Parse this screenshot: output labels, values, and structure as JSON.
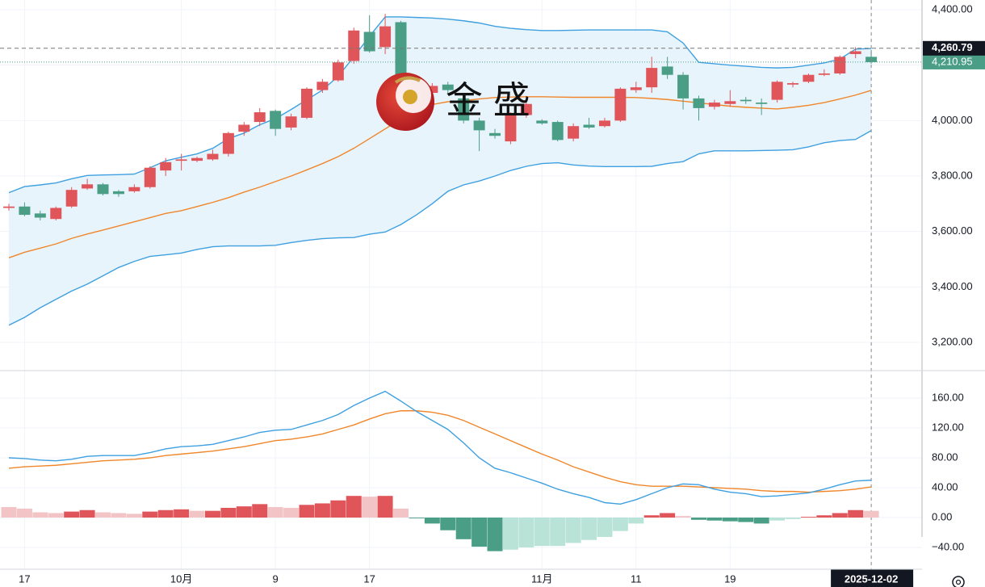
{
  "chart_data": {
    "type": "candlestick",
    "watermark": "金 盛",
    "categories": [
      null,
      "17",
      null,
      null,
      null,
      null,
      null,
      null,
      null,
      null,
      null,
      "10月",
      null,
      null,
      null,
      null,
      null,
      "9",
      null,
      null,
      null,
      null,
      null,
      "17",
      null,
      null,
      null,
      null,
      null,
      null,
      null,
      null,
      null,
      null,
      "11月",
      null,
      null,
      null,
      null,
      null,
      "11",
      null,
      null,
      null,
      null,
      null,
      "19",
      null,
      null,
      null,
      null,
      null,
      null,
      null,
      null,
      "2025-12-02"
    ],
    "open": [
      3685,
      3690,
      3665,
      3645,
      3690,
      3755,
      3770,
      3745,
      3745,
      3760,
      3820,
      3855,
      3855,
      3860,
      3880,
      3960,
      3995,
      4035,
      3975,
      4010,
      4110,
      4145,
      4215,
      4320,
      4265,
      4355,
      4125,
      4100,
      4130,
      4080,
      4000,
      3955,
      3925,
      4020,
      4000,
      3995,
      3935,
      3985,
      3980,
      4000,
      4110,
      4120,
      4195,
      4165,
      4080,
      4050,
      4060,
      4075,
      4065,
      4075,
      4130,
      4140,
      4165,
      4170,
      4240,
      4230
    ],
    "high": [
      3700,
      3705,
      3675,
      3690,
      3760,
      3790,
      3775,
      3750,
      3770,
      3835,
      3865,
      3880,
      3870,
      3895,
      3960,
      3995,
      4045,
      4040,
      4025,
      4120,
      4150,
      4220,
      4335,
      4380,
      4385,
      4360,
      4135,
      4135,
      4140,
      4090,
      4010,
      3970,
      4030,
      4080,
      4005,
      4000,
      3990,
      4010,
      4010,
      4120,
      4140,
      4230,
      4230,
      4175,
      4090,
      4075,
      4110,
      4085,
      4080,
      4145,
      4140,
      4170,
      4185,
      4235,
      4265,
      4255
    ],
    "low": [
      3675,
      3655,
      3640,
      3640,
      3685,
      3750,
      3730,
      3725,
      3740,
      3755,
      3800,
      3820,
      3850,
      3855,
      3870,
      3945,
      3980,
      3945,
      3965,
      4005,
      4100,
      4140,
      4205,
      4245,
      4240,
      4110,
      4090,
      4095,
      4100,
      3990,
      3890,
      3935,
      3915,
      4010,
      3985,
      3925,
      3925,
      3970,
      3975,
      3995,
      4100,
      4100,
      4150,
      4040,
      4000,
      4040,
      4050,
      4060,
      4020,
      4065,
      4120,
      4135,
      4160,
      4165,
      4225,
      4205
    ],
    "close": [
      3690,
      3660,
      3650,
      3685,
      3750,
      3770,
      3735,
      3735,
      3760,
      3830,
      3850,
      3860,
      3865,
      3880,
      3955,
      3985,
      4030,
      3970,
      4015,
      4115,
      4140,
      4210,
      4325,
      4250,
      4340,
      4115,
      4100,
      4125,
      4110,
      4000,
      3965,
      3945,
      4020,
      4060,
      3990,
      3930,
      3980,
      3975,
      4000,
      4115,
      4120,
      4190,
      4165,
      4080,
      4045,
      4065,
      4070,
      4070,
      4060,
      4140,
      4135,
      4165,
      4170,
      4230,
      4250,
      4210.95
    ],
    "up_color": "#e0555a",
    "down_color": "#4a9e86",
    "bands": [
      {
        "name": "upper",
        "color": "#3ea0e0",
        "values": [
          3740,
          3762,
          3768,
          3775,
          3790,
          3802,
          3804,
          3805,
          3807,
          3830,
          3855,
          3868,
          3880,
          3900,
          3935,
          3955,
          3985,
          4007,
          4040,
          4075,
          4110,
          4160,
          4230,
          4304,
          4374,
          4374,
          4372,
          4370,
          4366,
          4360,
          4352,
          4340,
          4333,
          4328,
          4325,
          4325,
          4326,
          4327,
          4327,
          4327,
          4327,
          4327,
          4320,
          4280,
          4210,
          4205,
          4200,
          4196,
          4192,
          4190,
          4192,
          4200,
          4208,
          4222,
          4258,
          4260
        ]
      },
      {
        "name": "middle",
        "color": "#f0862a",
        "values": [
          3505,
          3525,
          3540,
          3555,
          3575,
          3591,
          3605,
          3620,
          3635,
          3650,
          3665,
          3675,
          3690,
          3705,
          3722,
          3742,
          3760,
          3780,
          3800,
          3822,
          3845,
          3870,
          3900,
          3935,
          3970,
          4005,
          4040,
          4058,
          4068,
          4072,
          4078,
          4083,
          4085,
          4086,
          4086,
          4085,
          4084,
          4084,
          4084,
          4084,
          4083,
          4080,
          4076,
          4070,
          4064,
          4058,
          4052,
          4048,
          4045,
          4042,
          4048,
          4055,
          4065,
          4078,
          4092,
          4109
        ]
      },
      {
        "name": "lower",
        "color": "#3ea0e0",
        "values": [
          3262,
          3290,
          3325,
          3355,
          3385,
          3410,
          3440,
          3470,
          3492,
          3510,
          3516,
          3522,
          3535,
          3545,
          3548,
          3548,
          3548,
          3550,
          3560,
          3568,
          3574,
          3577,
          3578,
          3590,
          3598,
          3625,
          3660,
          3700,
          3745,
          3768,
          3782,
          3800,
          3820,
          3835,
          3845,
          3848,
          3840,
          3836,
          3834,
          3834,
          3834,
          3835,
          3845,
          3852,
          3880,
          3891,
          3891,
          3891,
          3892,
          3893,
          3895,
          3905,
          3920,
          3928,
          3932,
          3964
        ]
      }
    ],
    "band_fill": "#e8f4fc",
    "ylim": [
      3101,
      4435
    ],
    "yticks": [
      {
        "value": 3200,
        "label": "3,200.00"
      },
      {
        "value": 3400,
        "label": "3,400.00"
      },
      {
        "value": 3600,
        "label": "3,600.00"
      },
      {
        "value": 3800,
        "label": "3,800.00"
      },
      {
        "value": 4000,
        "label": "4,000.00"
      },
      {
        "value": 4200,
        "label": "4,200.00"
      },
      {
        "value": 4400,
        "label": "4,400.00"
      }
    ],
    "last_price": {
      "value": 4210.95,
      "label": "4,210.95",
      "color": "#4a9e86"
    },
    "crosshair": {
      "value": 4260.79,
      "label": "4,260.79",
      "color": "#131722"
    },
    "macd": {
      "dif": {
        "color": "#3ea0e0",
        "values": [
          80,
          79,
          77,
          76,
          78,
          82,
          83,
          83,
          83,
          87,
          92,
          95,
          96,
          98,
          103,
          108,
          114,
          117,
          118,
          124,
          130,
          138,
          150,
          160,
          169,
          156,
          142,
          130,
          118,
          100,
          80,
          66,
          60,
          53,
          46,
          38,
          32,
          27,
          20,
          18,
          24,
          32,
          40,
          45,
          44,
          38,
          34,
          32,
          28,
          29,
          31,
          33,
          38,
          44,
          49,
          50
        ]
      },
      "dea": {
        "color": "#f0862a",
        "values": [
          66,
          68,
          69,
          70,
          72,
          74,
          76,
          77,
          78,
          80,
          83,
          85,
          87,
          89,
          92,
          95,
          99,
          103,
          105,
          108,
          112,
          118,
          124,
          132,
          139,
          143,
          143,
          141,
          137,
          130,
          121,
          112,
          103,
          94,
          85,
          77,
          68,
          61,
          54,
          48,
          44,
          42,
          42,
          42,
          41,
          40,
          39,
          38,
          36,
          35,
          35,
          34,
          35,
          36,
          38,
          41
        ]
      },
      "hist": [
        14,
        12,
        7,
        6,
        8,
        10,
        7,
        6,
        5,
        8,
        10,
        11,
        9,
        9,
        13,
        15,
        18,
        14,
        13,
        17,
        19,
        23,
        29,
        28,
        29,
        12,
        -1,
        -8,
        -17,
        -29,
        -39,
        -45,
        -43,
        -40,
        -38,
        -38,
        -34,
        -30,
        -26,
        -18,
        -8,
        3,
        6,
        2,
        -3,
        -4,
        -5,
        -6,
        -8,
        -4,
        -2,
        1,
        3,
        6,
        10,
        9
      ],
      "hist_colors": {
        "up_rising": "#e0555a",
        "up_falling": "#f2c4c6",
        "down_falling": "#4a9e86",
        "down_rising": "#b9e3d7"
      },
      "ylim": [
        -69.2,
        195.7
      ],
      "yticks": [
        {
          "value": -40,
          "label": "−40.00"
        },
        {
          "value": 0,
          "label": "0.00"
        },
        {
          "value": 40,
          "label": "40.00"
        },
        {
          "value": 80,
          "label": "80.00"
        },
        {
          "value": 120,
          "label": "120.00"
        },
        {
          "value": 160,
          "label": "160.00"
        }
      ]
    },
    "grid": true
  }
}
